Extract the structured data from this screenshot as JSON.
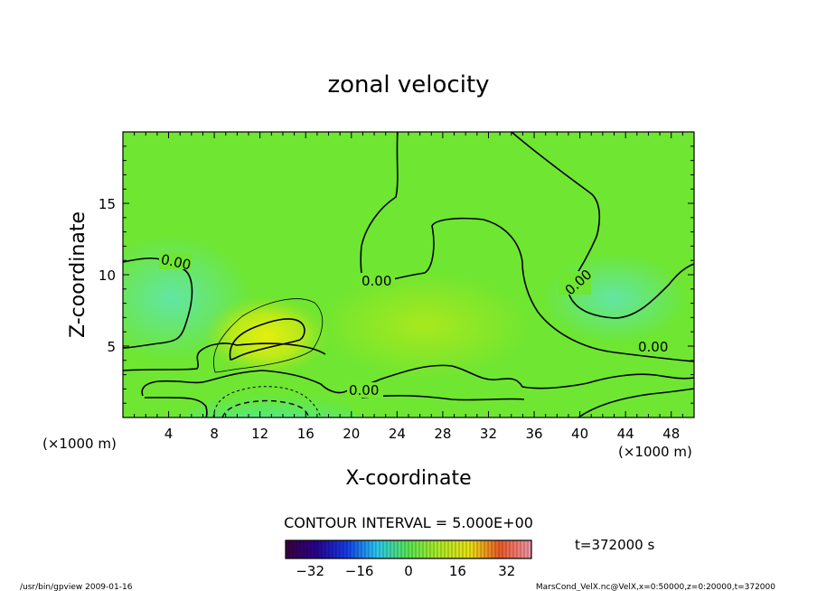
{
  "chart_data": {
    "type": "contour",
    "title": "zonal velocity",
    "xlabel": "X-coordinate",
    "ylabel": "Z-coordinate",
    "x_unit": "(×1000 m)",
    "y_unit": "(×1000 m)",
    "x_unit_right": "(×1000 m)",
    "xlim": [
      0,
      50
    ],
    "ylim": [
      0,
      20
    ],
    "x_ticks": [
      4,
      8,
      12,
      16,
      20,
      24,
      28,
      32,
      36,
      40,
      44,
      48
    ],
    "y_ticks": [
      5,
      10,
      15
    ],
    "contour_interval_text": "CONTOUR INTERVAL = 5.000E+00",
    "contour_labels": [
      "0.00",
      "0.00",
      "0.00",
      "0.00",
      "0.00"
    ],
    "colorbar": {
      "range": [
        -40,
        40
      ],
      "ticks": [
        -32,
        -16,
        0,
        16,
        32
      ]
    },
    "time_label": "t=372000 s",
    "features": [
      {
        "kind": "positive core",
        "x": 13.5,
        "z": 6.0,
        "value": 10
      },
      {
        "kind": "negative core",
        "x": 14.0,
        "z": 0.8,
        "value": -10
      }
    ]
  },
  "footer": {
    "left": "/usr/bin/gpview   2009-01-16",
    "right": "MarsCond_VelX.nc@VelX,x=0:50000,z=0:20000,t=372000"
  }
}
